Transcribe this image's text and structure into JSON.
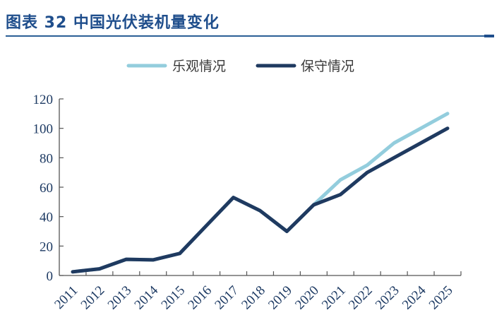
{
  "header": {
    "title": "图表 32 中国光伏装机量变化"
  },
  "legend": [
    {
      "label": "乐观情况",
      "color": "#93cddd"
    },
    {
      "label": "保守情况",
      "color": "#1f3a60"
    }
  ],
  "colors": {
    "title": "#1f4e8c",
    "title_rule": "#2b5f96",
    "axis": "#555555",
    "tick_labels": "#1d3a63",
    "optimistic": "#93cddd",
    "conservative": "#1f3a60"
  },
  "chart_data": {
    "type": "line",
    "title": "图表 32 中国光伏装机量变化",
    "xlabel": "",
    "ylabel": "",
    "ylim": [
      0,
      120
    ],
    "yticks": [
      0,
      20,
      40,
      60,
      80,
      100,
      120
    ],
    "grid": false,
    "legend_position": "top",
    "categories": [
      "2011",
      "2012",
      "2013",
      "2014",
      "2015",
      "2016",
      "2017",
      "2018",
      "2019",
      "2020",
      "2021",
      "2022",
      "2023",
      "2024",
      "2025"
    ],
    "series": [
      {
        "name": "乐观情况",
        "color": "#93cddd",
        "values": [
          2.5,
          4.5,
          11,
          10.6,
          15,
          34,
          53,
          44,
          30,
          48,
          65,
          75,
          90,
          100,
          110
        ]
      },
      {
        "name": "保守情况",
        "color": "#1f3a60",
        "values": [
          2.5,
          4.5,
          11,
          10.6,
          15,
          34,
          53,
          44,
          30,
          48,
          55,
          70,
          80,
          90,
          100
        ]
      }
    ]
  }
}
